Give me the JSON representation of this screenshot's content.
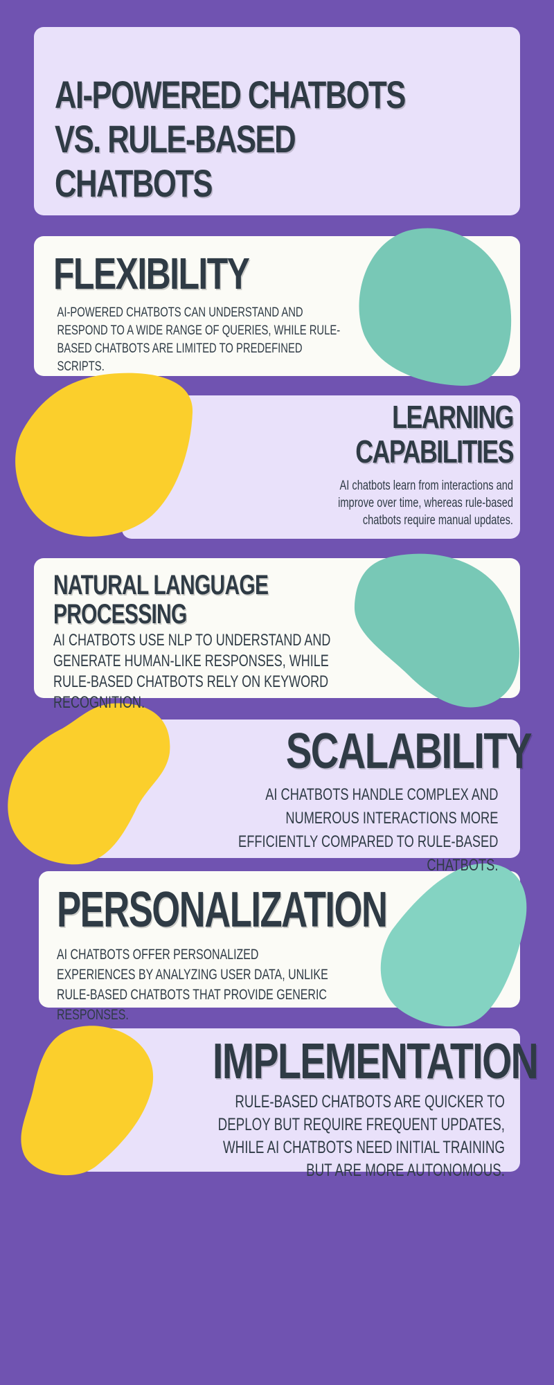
{
  "title": "AI-POWERED CHATBOTS VS. RULE-BASED CHATBOTS",
  "colors": {
    "background": "#7053b1",
    "card_lavender": "#e9e1fa",
    "card_white": "#fbfbf6",
    "teal_blob": "#78c8b6",
    "yellow_blob": "#fbcf2c",
    "text": "#2f3b45"
  },
  "sections": [
    {
      "heading": "FLEXIBILITY",
      "text": "AI-POWERED CHATBOTS CAN UNDERSTAND AND RESPOND TO A WIDE RANGE OF QUERIES, WHILE RULE-BASED CHATBOTS ARE LIMITED TO PREDEFINED SCRIPTS."
    },
    {
      "heading": "LEARNING CAPABILITIES",
      "text": "AI chatbots learn from interactions and improve over time, whereas rule-based chatbots require manual updates."
    },
    {
      "heading": "NATURAL LANGUAGE PROCESSING",
      "text": "AI CHATBOTS USE NLP TO UNDERSTAND AND GENERATE HUMAN-LIKE RESPONSES, WHILE RULE-BASED CHATBOTS RELY ON KEYWORD RECOGNITION."
    },
    {
      "heading": "SCALABILITY",
      "text": "AI CHATBOTS HANDLE COMPLEX AND NUMEROUS INTERACTIONS MORE EFFICIENTLY COMPARED TO RULE-BASED CHATBOTS."
    },
    {
      "heading": "PERSONALIZATION",
      "text": "AI CHATBOTS OFFER PERSONALIZED EXPERIENCES BY ANALYZING USER DATA, UNLIKE RULE-BASED CHATBOTS THAT PROVIDE GENERIC RESPONSES."
    },
    {
      "heading": "IMPLEMENTATION",
      "text": "RULE-BASED CHATBOTS ARE QUICKER TO DEPLOY BUT REQUIRE FREQUENT UPDATES, WHILE AI CHATBOTS NEED INITIAL TRAINING BUT ARE MORE AUTONOMOUS."
    }
  ]
}
